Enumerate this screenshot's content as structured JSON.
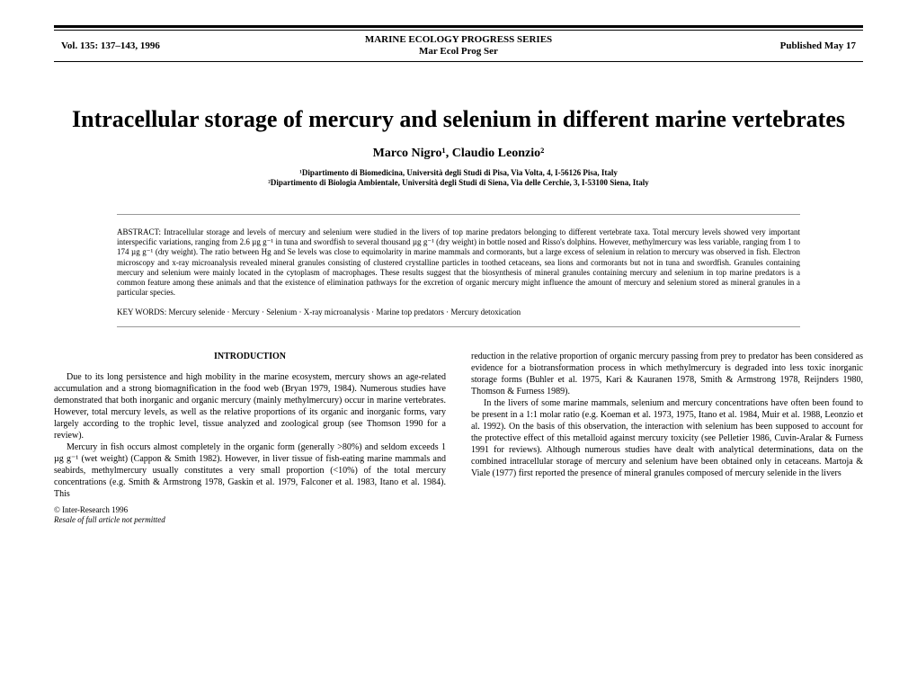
{
  "header": {
    "vol": "Vol. 135: 137–143, 1996",
    "series1": "MARINE ECOLOGY PROGRESS SERIES",
    "series2": "Mar Ecol Prog Ser",
    "pub": "Published May 17"
  },
  "title": "Intracellular storage of mercury and selenium in different marine vertebrates",
  "authors": "Marco Nigro¹, Claudio Leonzio²",
  "affil1": "¹Dipartimento di Biomedicina, Università degli Studi di Pisa, Via Volta, 4, I-56126 Pisa, Italy",
  "affil2": "²Dipartimento di Biologia Ambientale, Università degli Studi di Siena, Via delle Cerchie, 3, I-53100 Siena, Italy",
  "abstract": "ABSTRACT: Intracellular storage and levels of mercury and selenium were studied in the livers of top marine predators belonging to different vertebrate taxa. Total mercury levels showed very important interspecific variations, ranging from 2.6 µg g⁻¹ in tuna and swordfish to several thousand µg g⁻¹ (dry weight) in bottle nosed and Risso's dolphins. However, methylmercury was less variable, ranging from 1 to 174 µg g⁻¹ (dry weight). The ratio between Hg and Se levels was close to equimolarity in marine mammals and cormorants, but a large excess of selenium in relation to mercury was observed in fish. Electron microscopy and x-ray microanalysis revealed mineral granules consisting of clustered crystalline particles in toothed cetaceans, sea lions and cormorants but not in tuna and swordfish. Granules containing mercury and selenium were mainly located in the cytoplasm of macrophages. These results suggest that the biosynthesis of mineral granules containing mercury and selenium in top marine predators is a common feature among these animals and that the existence of elimination pathways for the excretion of organic mercury might influence the amount of mercury and selenium stored as mineral granules in a particular species.",
  "keywords": "KEY WORDS: Mercury selenide · Mercury · Selenium · X-ray microanalysis · Marine top predators · Mercury detoxication",
  "intro_head": "INTRODUCTION",
  "col1_p1": "Due to its long persistence and high mobility in the marine ecosystem, mercury shows an age-related accumulation and a strong biomagnification in the food web (Bryan 1979, 1984). Numerous studies have demonstrated that both inorganic and organic mercury (mainly methylmercury) occur in marine vertebrates. However, total mercury levels, as well as the relative proportions of its organic and inorganic forms, vary largely according to the trophic level, tissue analyzed and zoological group (see Thomson 1990 for a review).",
  "col1_p2": "Mercury in fish occurs almost completely in the organic form (generally >80%) and seldom exceeds 1 µg g⁻¹ (wet weight) (Cappon & Smith 1982). However, in liver tissue of fish-eating marine mammals and seabirds, methylmercury usually constitutes a very small proportion (<10%) of the total mercury concentrations (e.g. Smith & Armstrong 1978, Gaskin et al. 1979, Falconer et al. 1983, Itano et al. 1984). This",
  "col2_p1": "reduction in the relative proportion of organic mercury passing from prey to predator has been considered as evidence for a biotransformation process in which methylmercury is degraded into less toxic inorganic storage forms (Buhler et al. 1975, Kari & Kauranen 1978, Smith & Armstrong 1978, Reijnders 1980, Thomson & Furness 1989).",
  "col2_p2": "In the livers of some marine mammals, selenium and mercury concentrations have often been found to be present in a 1:1 molar ratio (e.g. Koeman et al. 1973, 1975, Itano et al. 1984, Muir et al. 1988, Leonzio et al. 1992). On the basis of this observation, the interaction with selenium has been supposed to account for the protective effect of this metalloid against mercury toxicity (see Pelletier 1986, Cuvin-Aralar & Furness 1991 for reviews). Although numerous studies have dealt with analytical determinations, data on the combined intracellular storage of mercury and selenium have been obtained only in cetaceans. Martoja & Viale (1977) first reported the presence of mineral granules composed of mercury selenide in the livers",
  "footer1": "© Inter-Research 1996",
  "footer2": "Resale of full article not permitted"
}
